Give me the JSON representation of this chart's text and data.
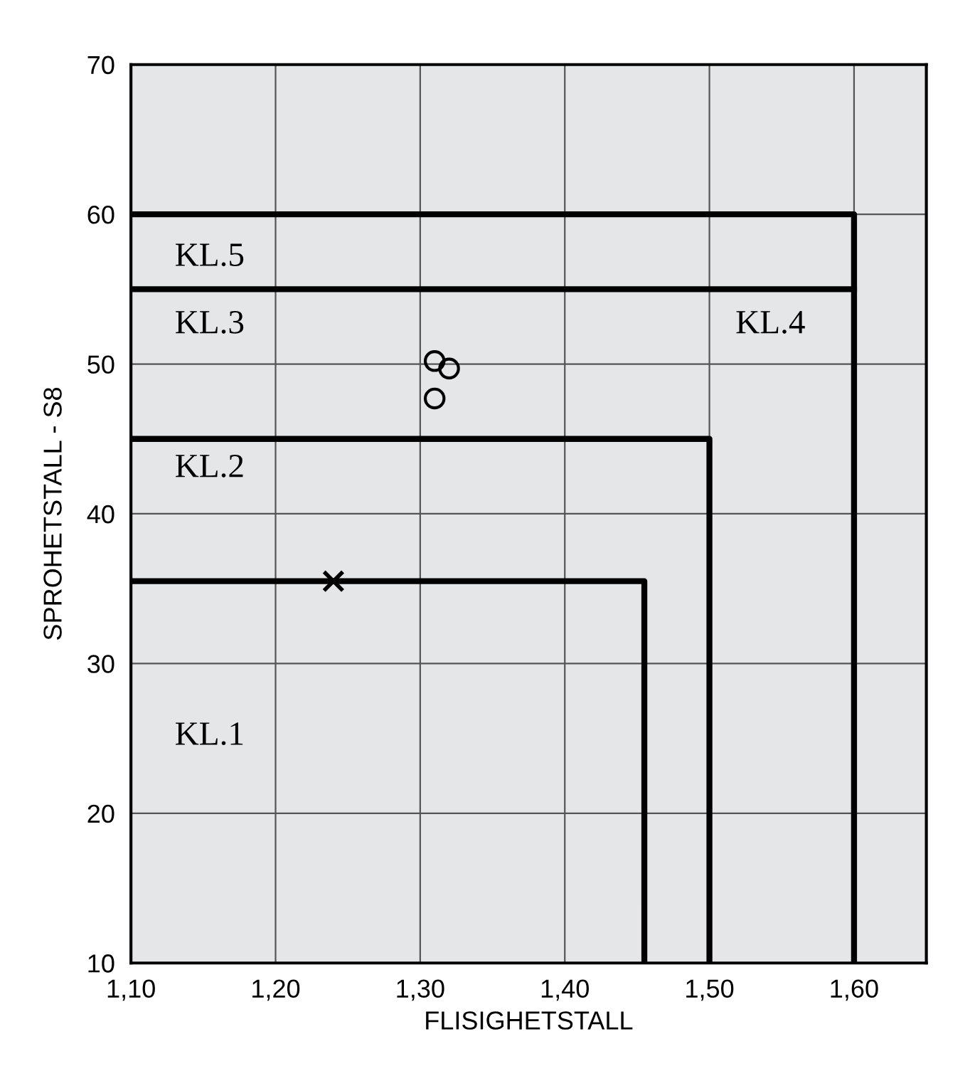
{
  "chart_data": {
    "type": "line",
    "xlabel": "FLISIGHETSTALL",
    "ylabel": "SPROHETSTALL - S8",
    "xlim": [
      1.1,
      1.65
    ],
    "ylim": [
      10,
      70
    ],
    "xticks": [
      {
        "value": 1.1,
        "label": "1,10"
      },
      {
        "value": 1.2,
        "label": "1,20"
      },
      {
        "value": 1.3,
        "label": "1,30"
      },
      {
        "value": 1.4,
        "label": "1,40"
      },
      {
        "value": 1.5,
        "label": "1,50"
      },
      {
        "value": 1.6,
        "label": "1,60"
      }
    ],
    "yticks": [
      10,
      20,
      30,
      40,
      50,
      60,
      70
    ],
    "grid": true,
    "legend": false,
    "line_style": "solid",
    "series": [
      {
        "color": "#000000",
        "x": [
          1.1,
          1.455,
          1.455
        ],
        "values": [
          35.5,
          35.5,
          10
        ]
      },
      {
        "color": "#000000",
        "x": [
          1.1,
          1.5,
          1.5
        ],
        "values": [
          45,
          45,
          10
        ]
      },
      {
        "color": "#000000",
        "x": [
          1.1,
          1.6
        ],
        "values": [
          55,
          55
        ]
      },
      {
        "color": "#000000",
        "x": [
          1.1,
          1.6,
          1.6
        ],
        "values": [
          60,
          60,
          10
        ]
      },
      {
        "type": "scatter",
        "color": "#000000",
        "marker": "circle",
        "x": [
          1.31,
          1.32,
          1.31
        ],
        "values": [
          50.2,
          49.7,
          47.7
        ]
      },
      {
        "type": "scatter",
        "color": "#000000",
        "marker": "cross",
        "x": [
          1.24
        ],
        "values": [
          35.5
        ]
      }
    ],
    "annotations": [
      "KL.5",
      "KL.3",
      "KL.4",
      "KL.2",
      "KL.1"
    ]
  }
}
